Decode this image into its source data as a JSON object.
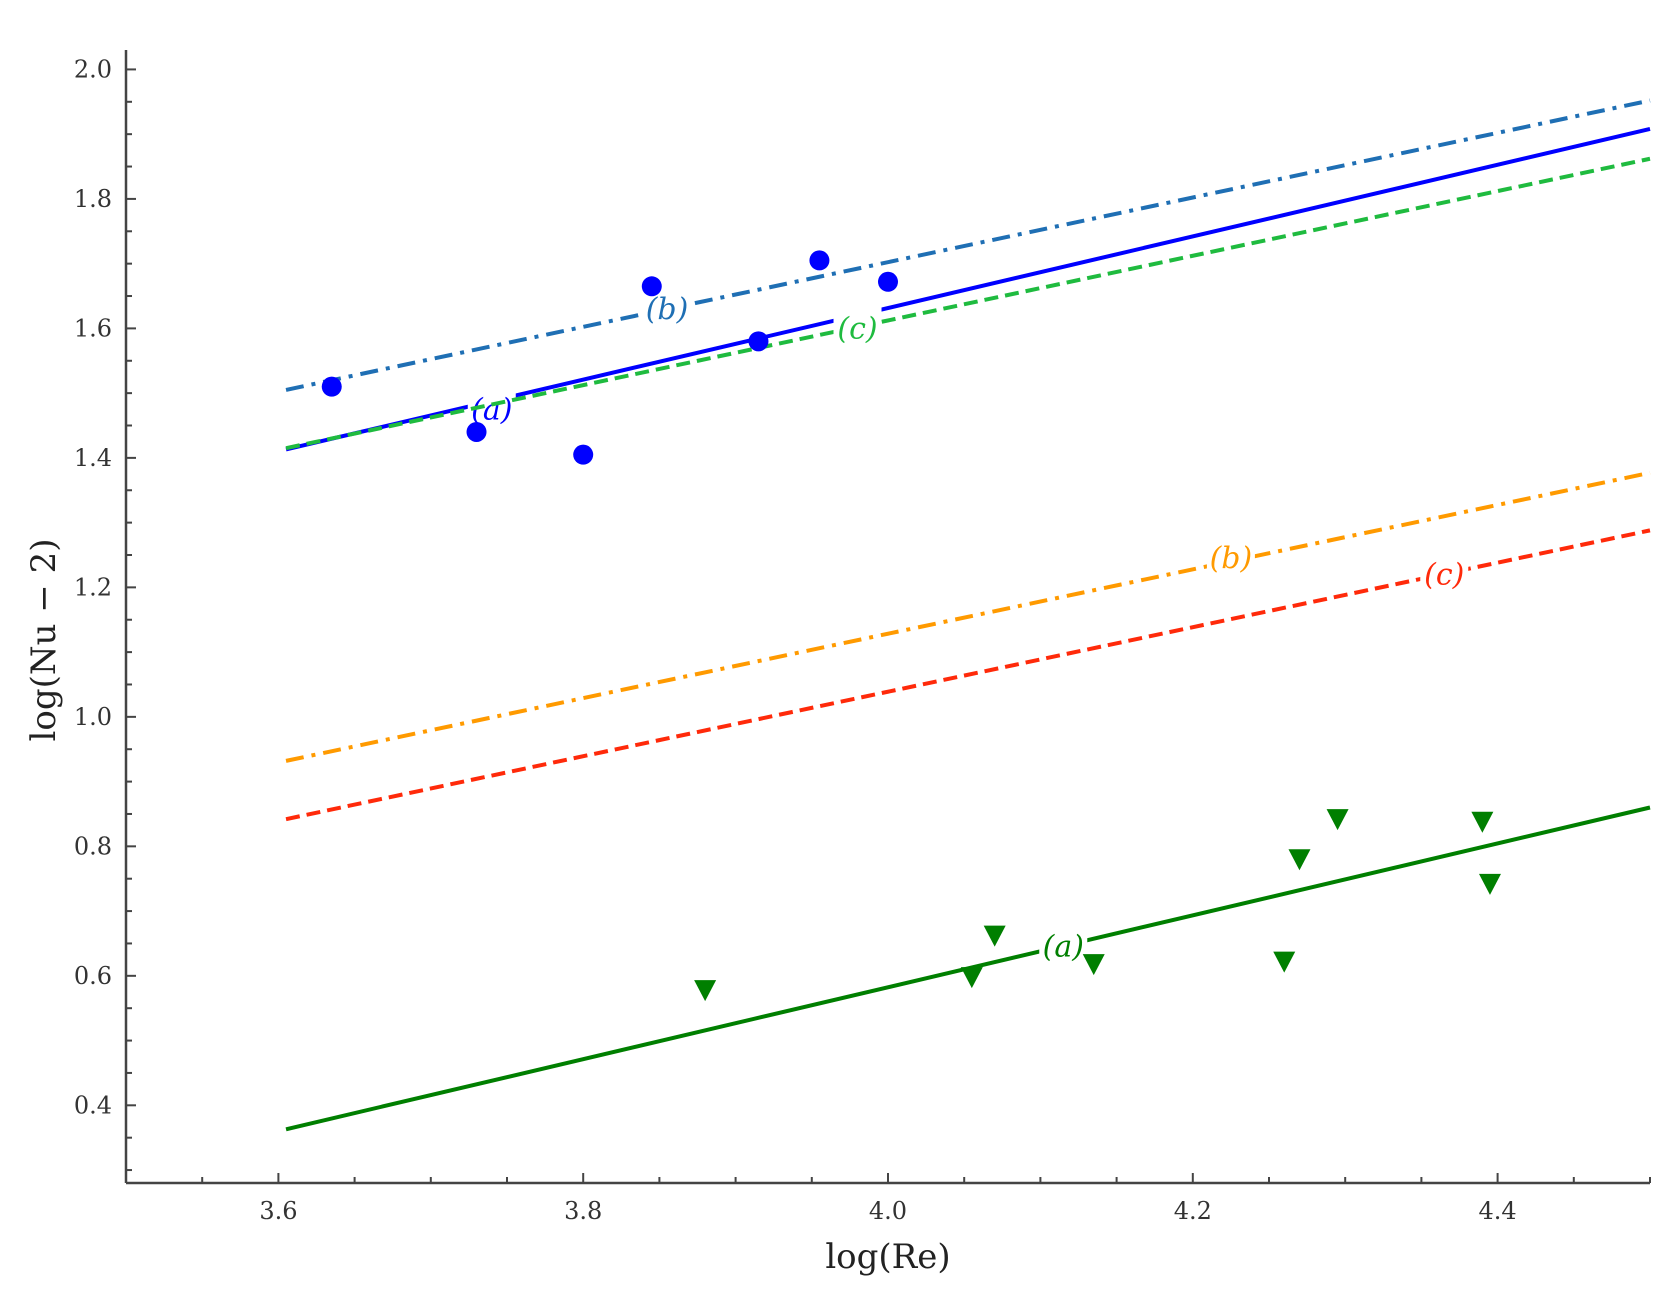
{
  "chart_data": {
    "type": "scatter",
    "title": "",
    "xlabel": "log(Re)",
    "ylabel": "log(Nu − 2)",
    "xlim": [
      3.5,
      4.5
    ],
    "ylim": [
      0.28,
      2.03
    ],
    "grid": false,
    "legend": "none (inline curve labels)",
    "x_ticks": [
      "3.6",
      "3.8",
      "4.0",
      "4.2",
      "4.4"
    ],
    "y_ticks": [
      "0.4",
      "0.6",
      "0.8",
      "1.0",
      "1.2",
      "1.4",
      "1.6",
      "1.8",
      "2.0"
    ],
    "scatter_series": [
      {
        "name": "blue circles",
        "marker": "circle",
        "color": "#0000ff",
        "points": [
          [
            3.635,
            1.51
          ],
          [
            3.73,
            1.44
          ],
          [
            3.8,
            1.405
          ],
          [
            3.845,
            1.665
          ],
          [
            3.915,
            1.58
          ],
          [
            3.955,
            1.705
          ],
          [
            4.0,
            1.672
          ]
        ]
      },
      {
        "name": "green triangles",
        "marker": "triangle-down",
        "color": "#007f00",
        "points": [
          [
            3.88,
            0.578
          ],
          [
            4.055,
            0.598
          ],
          [
            4.07,
            0.662
          ],
          [
            4.135,
            0.618
          ],
          [
            4.26,
            0.622
          ],
          [
            4.27,
            0.78
          ],
          [
            4.295,
            0.842
          ],
          [
            4.39,
            0.838
          ],
          [
            4.395,
            0.742
          ]
        ]
      }
    ],
    "line_series": [
      {
        "name": "upper (a)",
        "label": "(a)",
        "style": "solid",
        "color": "#0000ff",
        "x": [
          3.605,
          4.5
        ],
        "y": [
          1.413,
          1.908
        ],
        "label_at": [
          3.74,
          1.475
        ]
      },
      {
        "name": "upper (b)",
        "label": "(b)",
        "style": "dashdot",
        "color": "#1f6fb4",
        "x": [
          3.605,
          4.5
        ],
        "y": [
          1.505,
          1.952
        ],
        "label_at": [
          3.855,
          1.63
        ]
      },
      {
        "name": "upper (c)",
        "label": "(c)",
        "style": "dashed",
        "color": "#1fbb3f",
        "x": [
          3.605,
          4.5
        ],
        "y": [
          1.415,
          1.862
        ],
        "label_at": [
          3.98,
          1.6
        ]
      },
      {
        "name": "lower (a)",
        "label": "(a)",
        "style": "solid",
        "color": "#007f00",
        "x": [
          3.605,
          4.5
        ],
        "y": [
          0.363,
          0.86
        ],
        "label_at": [
          4.115,
          0.645
        ]
      },
      {
        "name": "lower (b)",
        "label": "(b)",
        "style": "dashdot",
        "color": "#ff9a00",
        "x": [
          3.605,
          4.5
        ],
        "y": [
          0.932,
          1.377
        ],
        "label_at": [
          4.225,
          1.245
        ]
      },
      {
        "name": "lower (c)",
        "label": "(c)",
        "style": "dashed",
        "color": "#ff2a0a",
        "x": [
          3.605,
          4.5
        ],
        "y": [
          0.842,
          1.288
        ],
        "label_at": [
          4.365,
          1.22
        ]
      }
    ]
  },
  "plot": {
    "x_axis_label_text": "log(Re)",
    "y_axis_label_text": "log(Nu − 2)"
  }
}
